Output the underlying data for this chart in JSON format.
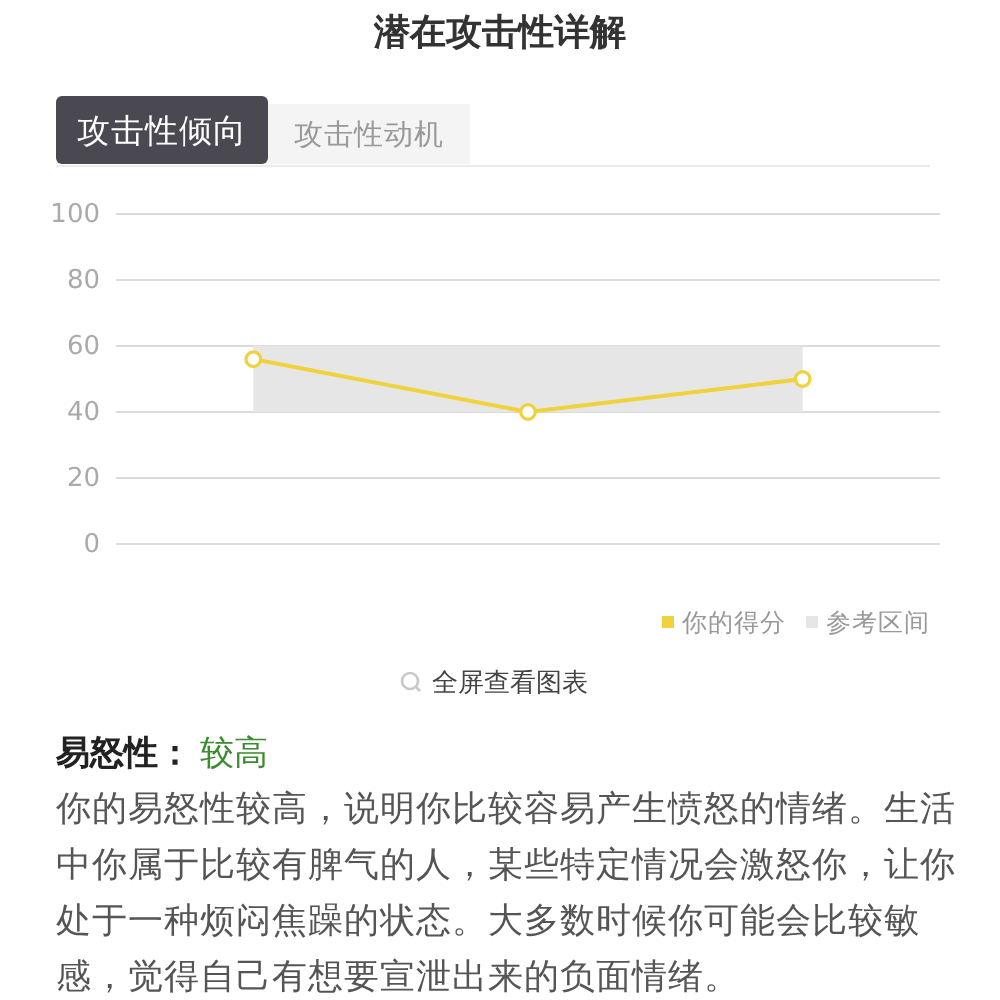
{
  "chart_data": {
    "type": "line",
    "title": "潜在攻击性详解",
    "categories": [
      null,
      null,
      null
    ],
    "series": [
      {
        "name": "你的得分",
        "color": "#f0d23c",
        "values": [
          56,
          40,
          50
        ]
      }
    ],
    "ylim": [
      0,
      100
    ],
    "yticks": [
      0,
      20,
      40,
      60,
      80,
      100
    ],
    "grid": "y",
    "tick_labels": "y",
    "legend": "bottom right",
    "marker": "circle",
    "line_style": "solid",
    "bands": [
      {
        "axis": "y",
        "from": 40,
        "to": 60,
        "label": "参考区间",
        "color": "#e6e6e6"
      }
    ],
    "annotations": [
      "攻击性倾向",
      "攻击性动机",
      "全屏查看图表",
      "易怒性：",
      "较高",
      "你的易怒性较高，说明你比较容易产生愤怒的情绪。生活中你属于比较有脾气的人，某些特定情况会激怒你，让你处于一种烦闷焦躁的状态。大多数时候你可能会比较敏感，觉得自己有想要宣泄出来的负面情绪。"
    ]
  }
}
